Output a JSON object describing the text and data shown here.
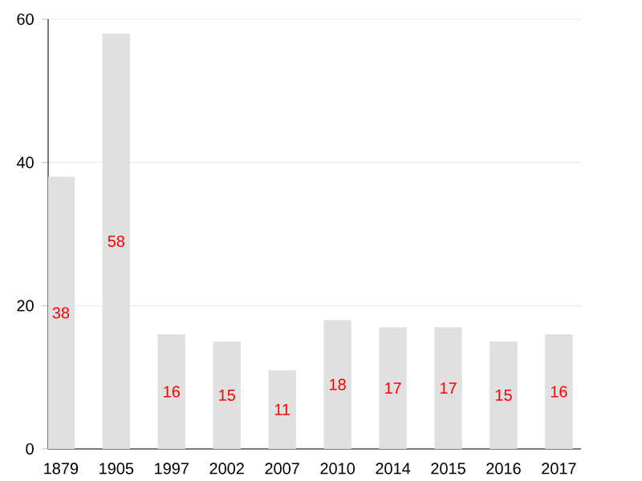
{
  "chart_data": {
    "type": "bar",
    "categories": [
      "1879",
      "1905",
      "1997",
      "2002",
      "2007",
      "2010",
      "2014",
      "2015",
      "2016",
      "2017"
    ],
    "values": [
      38,
      58,
      16,
      15,
      11,
      18,
      17,
      17,
      15,
      16
    ],
    "color": "#e0e0e0",
    "ylim": [
      0,
      60
    ],
    "yticks": [
      0,
      20,
      40,
      60
    ],
    "grid": "y",
    "data_labels": true
  }
}
